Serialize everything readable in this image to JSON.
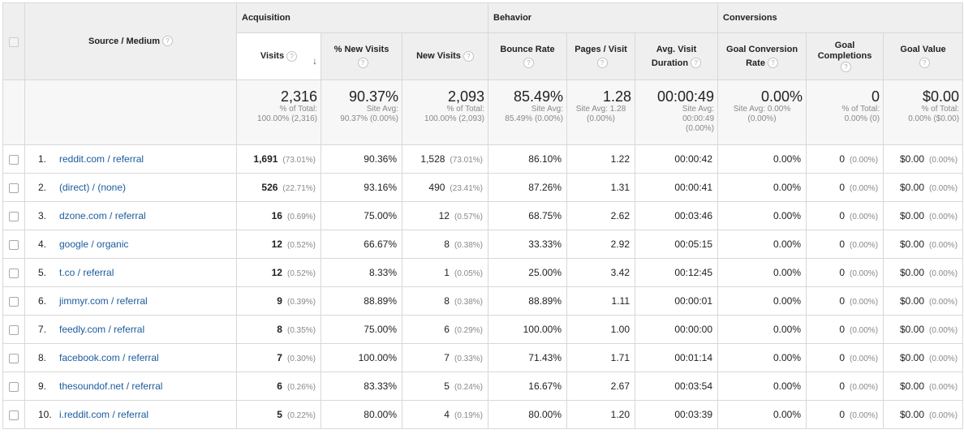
{
  "groups": {
    "acquisition": "Acquisition",
    "behavior": "Behavior",
    "conversions": "Conversions"
  },
  "headers": {
    "source_medium": "Source / Medium",
    "visits": "Visits",
    "new_visits_pct": "% New Visits",
    "new_visits": "New Visits",
    "bounce_rate": "Bounce Rate",
    "pages_visit": "Pages / Visit",
    "avg_visit_duration_1": "Avg. Visit",
    "avg_visit_duration_2": "Duration",
    "goal_conv_rate_1": "Goal Conversion",
    "goal_conv_rate_2": "Rate",
    "goal_completions_1": "Goal",
    "goal_completions_2": "Completions",
    "goal_value": "Goal Value",
    "help": "?",
    "sort_arrow": "↓"
  },
  "totals": {
    "visits": {
      "value": "2,316",
      "l1": "% of Total:",
      "l2": "100.00% (2,316)"
    },
    "new_visits_pct": {
      "value": "90.37%",
      "l1": "Site Avg:",
      "l2": "90.37% (0.00%)"
    },
    "new_visits": {
      "value": "2,093",
      "l1": "% of Total:",
      "l2": "100.00% (2,093)"
    },
    "bounce_rate": {
      "value": "85.49%",
      "l1": "Site Avg:",
      "l2": "85.49% (0.00%)"
    },
    "pages_visit": {
      "value": "1.28",
      "l1": "Site Avg: 1.28",
      "l2": "(0.00%)"
    },
    "avg_duration": {
      "value": "00:00:49",
      "l1": "Site Avg:",
      "l2": "00:00:49",
      "l3": "(0.00%)"
    },
    "goal_conv_rate": {
      "value": "0.00%",
      "l1": "Site Avg: 0.00%",
      "l2": "(0.00%)"
    },
    "goal_completions": {
      "value": "0",
      "l1": "% of Total:",
      "l2": "0.00% (0)"
    },
    "goal_value": {
      "value": "$0.00",
      "l1": "% of Total:",
      "l2": "0.00% ($0.00)"
    }
  },
  "rows": [
    {
      "idx": "1.",
      "source": "reddit.com / referral",
      "visits": "1,691",
      "visits_pct": "(73.01%)",
      "new_pct": "90.36%",
      "new_visits": "1,528",
      "new_visits_pct": "(73.01%)",
      "bounce": "86.10%",
      "pages": "1.22",
      "duration": "00:00:42",
      "conv": "0.00%",
      "comp": "0",
      "comp_pct": "(0.00%)",
      "value": "$0.00",
      "value_pct": "(0.00%)"
    },
    {
      "idx": "2.",
      "source": "(direct) / (none)",
      "visits": "526",
      "visits_pct": "(22.71%)",
      "new_pct": "93.16%",
      "new_visits": "490",
      "new_visits_pct": "(23.41%)",
      "bounce": "87.26%",
      "pages": "1.31",
      "duration": "00:00:41",
      "conv": "0.00%",
      "comp": "0",
      "comp_pct": "(0.00%)",
      "value": "$0.00",
      "value_pct": "(0.00%)"
    },
    {
      "idx": "3.",
      "source": "dzone.com / referral",
      "visits": "16",
      "visits_pct": "(0.69%)",
      "new_pct": "75.00%",
      "new_visits": "12",
      "new_visits_pct": "(0.57%)",
      "bounce": "68.75%",
      "pages": "2.62",
      "duration": "00:03:46",
      "conv": "0.00%",
      "comp": "0",
      "comp_pct": "(0.00%)",
      "value": "$0.00",
      "value_pct": "(0.00%)"
    },
    {
      "idx": "4.",
      "source": "google / organic",
      "visits": "12",
      "visits_pct": "(0.52%)",
      "new_pct": "66.67%",
      "new_visits": "8",
      "new_visits_pct": "(0.38%)",
      "bounce": "33.33%",
      "pages": "2.92",
      "duration": "00:05:15",
      "conv": "0.00%",
      "comp": "0",
      "comp_pct": "(0.00%)",
      "value": "$0.00",
      "value_pct": "(0.00%)"
    },
    {
      "idx": "5.",
      "source": "t.co / referral",
      "visits": "12",
      "visits_pct": "(0.52%)",
      "new_pct": "8.33%",
      "new_visits": "1",
      "new_visits_pct": "(0.05%)",
      "bounce": "25.00%",
      "pages": "3.42",
      "duration": "00:12:45",
      "conv": "0.00%",
      "comp": "0",
      "comp_pct": "(0.00%)",
      "value": "$0.00",
      "value_pct": "(0.00%)"
    },
    {
      "idx": "6.",
      "source": "jimmyr.com / referral",
      "visits": "9",
      "visits_pct": "(0.39%)",
      "new_pct": "88.89%",
      "new_visits": "8",
      "new_visits_pct": "(0.38%)",
      "bounce": "88.89%",
      "pages": "1.11",
      "duration": "00:00:01",
      "conv": "0.00%",
      "comp": "0",
      "comp_pct": "(0.00%)",
      "value": "$0.00",
      "value_pct": "(0.00%)"
    },
    {
      "idx": "7.",
      "source": "feedly.com / referral",
      "visits": "8",
      "visits_pct": "(0.35%)",
      "new_pct": "75.00%",
      "new_visits": "6",
      "new_visits_pct": "(0.29%)",
      "bounce": "100.00%",
      "pages": "1.00",
      "duration": "00:00:00",
      "conv": "0.00%",
      "comp": "0",
      "comp_pct": "(0.00%)",
      "value": "$0.00",
      "value_pct": "(0.00%)"
    },
    {
      "idx": "8.",
      "source": "facebook.com / referral",
      "visits": "7",
      "visits_pct": "(0.30%)",
      "new_pct": "100.00%",
      "new_visits": "7",
      "new_visits_pct": "(0.33%)",
      "bounce": "71.43%",
      "pages": "1.71",
      "duration": "00:01:14",
      "conv": "0.00%",
      "comp": "0",
      "comp_pct": "(0.00%)",
      "value": "$0.00",
      "value_pct": "(0.00%)"
    },
    {
      "idx": "9.",
      "source": "thesoundof.net / referral",
      "visits": "6",
      "visits_pct": "(0.26%)",
      "new_pct": "83.33%",
      "new_visits": "5",
      "new_visits_pct": "(0.24%)",
      "bounce": "16.67%",
      "pages": "2.67",
      "duration": "00:03:54",
      "conv": "0.00%",
      "comp": "0",
      "comp_pct": "(0.00%)",
      "value": "$0.00",
      "value_pct": "(0.00%)"
    },
    {
      "idx": "10.",
      "source": "i.reddit.com / referral",
      "visits": "5",
      "visits_pct": "(0.22%)",
      "new_pct": "80.00%",
      "new_visits": "4",
      "new_visits_pct": "(0.19%)",
      "bounce": "80.00%",
      "pages": "1.20",
      "duration": "00:03:39",
      "conv": "0.00%",
      "comp": "0",
      "comp_pct": "(0.00%)",
      "value": "$0.00",
      "value_pct": "(0.00%)"
    }
  ]
}
